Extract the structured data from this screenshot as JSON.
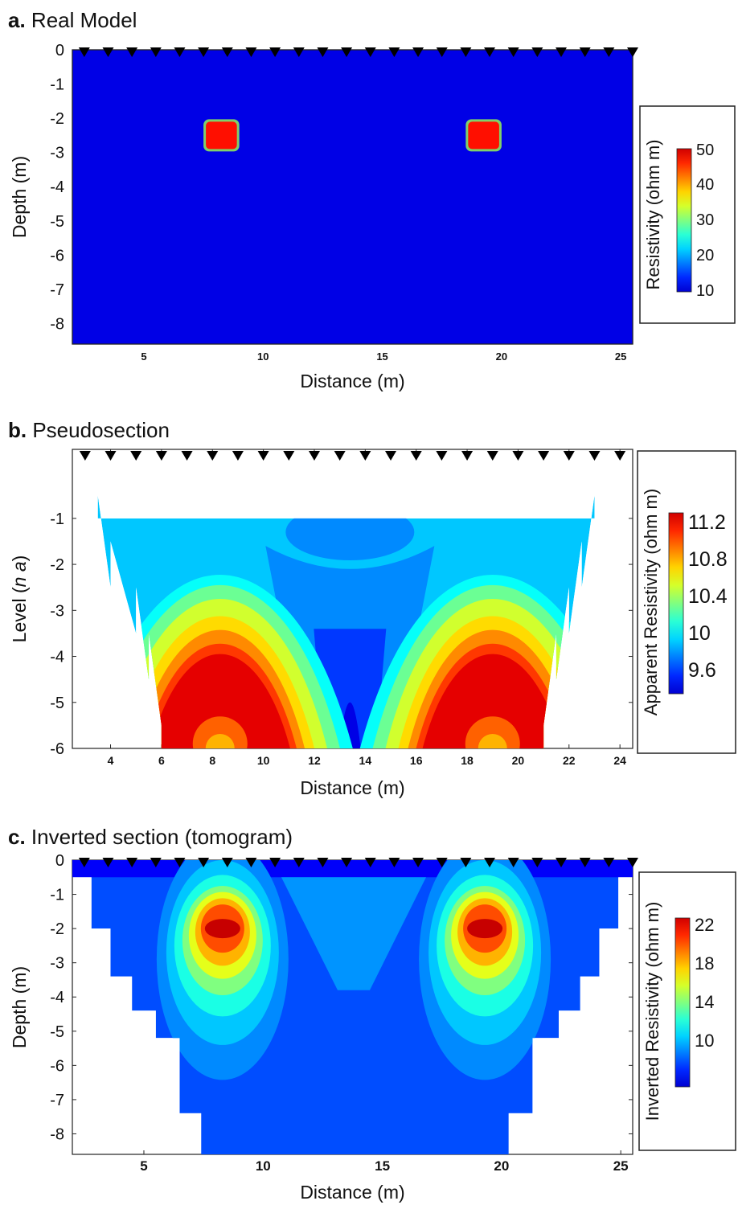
{
  "figure": {
    "panels": [
      {
        "letter": "a.",
        "title": "Real Model"
      },
      {
        "letter": "b.",
        "title": "Pseudosection"
      },
      {
        "letter": "c.",
        "title": "Inverted section (tomogram)"
      }
    ]
  },
  "chart_data": [
    {
      "type": "heatmap",
      "panel": "a",
      "title": "Real Model",
      "xlabel": "Distance (m)",
      "ylabel": "Depth (m)",
      "xlim": [
        2,
        25.5
      ],
      "ylim": [
        -8.6,
        0
      ],
      "xticks": [
        5,
        10,
        15,
        20,
        25
      ],
      "yticks": [
        0,
        -1,
        -2,
        -3,
        -4,
        -5,
        -6,
        -7,
        -8
      ],
      "electrodes": {
        "count": 24,
        "x_first": 2.5,
        "x_last": 25.5
      },
      "background_resistivity": 10,
      "anomalies": [
        {
          "x_range": [
            7.6,
            8.9
          ],
          "depth_range": [
            -2.9,
            -2.1
          ],
          "resistivity": 50
        },
        {
          "x_range": [
            18.6,
            19.9
          ],
          "depth_range": [
            -2.9,
            -2.1
          ],
          "resistivity": 50
        }
      ],
      "colorbar": {
        "label": "Resistivity (ohm m)",
        "ticks": [
          50,
          40,
          30,
          20,
          10
        ],
        "range": [
          10,
          50
        ]
      }
    },
    {
      "type": "heatmap",
      "panel": "b",
      "title": "Pseudosection",
      "xlabel": "Distance (m)",
      "ylabel_prefix": "Level (",
      "ylabel_italic": "n a",
      "ylabel_suffix": ")",
      "xlim": [
        2.5,
        24.5
      ],
      "ylim": [
        -6,
        0.5
      ],
      "xticks": [
        4,
        6,
        8,
        10,
        12,
        14,
        16,
        18,
        20,
        22,
        24
      ],
      "yticks": [
        -1,
        -2,
        -3,
        -4,
        -5,
        -6
      ],
      "electrodes": {
        "count": 22,
        "x_first": 3,
        "x_last": 24
      },
      "levels": [
        {
          "level": -1,
          "x_range": [
            3.5,
            23
          ]
        },
        {
          "level": -2,
          "x_range": [
            4,
            22.5
          ]
        },
        {
          "level": -3,
          "x_range": [
            5,
            22
          ]
        },
        {
          "level": -4,
          "x_range": [
            5.5,
            21.5
          ]
        },
        {
          "level": -5,
          "x_range": [
            6,
            21
          ]
        },
        {
          "level": -6,
          "x_range": [
            6,
            21
          ]
        }
      ],
      "anomaly_peaks_x": [
        8.3,
        19
      ],
      "colorbar": {
        "label": "Apparent Resistivity (ohm m)",
        "ticks": [
          "11.2",
          "10.8",
          "10.4",
          "10",
          "9.6"
        ],
        "range": [
          9.6,
          11.2
        ]
      }
    },
    {
      "type": "heatmap",
      "panel": "c",
      "title": "Inverted section (tomogram)",
      "xlabel": "Distance (m)",
      "ylabel": "Depth (m)",
      "xlim": [
        2,
        25.5
      ],
      "ylim": [
        -8.6,
        0
      ],
      "xticks": [
        5,
        10,
        15,
        20,
        25
      ],
      "yticks": [
        0,
        -1,
        -2,
        -3,
        -4,
        -5,
        -6,
        -7,
        -8
      ],
      "electrodes": {
        "count": 24,
        "x_first": 2.5,
        "x_last": 25.5
      },
      "anomaly_peaks": [
        {
          "x": 8.3,
          "depth": -2
        },
        {
          "x": 19.3,
          "depth": -2
        }
      ],
      "colorbar": {
        "label": "Inverted Resistivity (ohm m)",
        "ticks": [
          22,
          18,
          14,
          10
        ],
        "range": [
          8,
          23
        ]
      }
    }
  ]
}
